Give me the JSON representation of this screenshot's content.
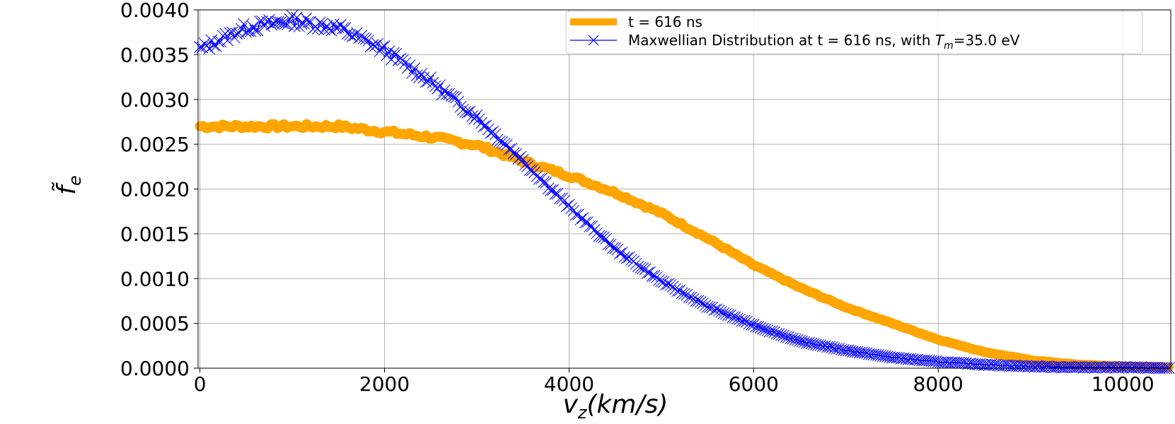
{
  "chart_data": {
    "type": "line",
    "title": "",
    "xlabel": "v_z(km/s)",
    "ylabel": "f̃_e",
    "xlim": [
      -20,
      10520
    ],
    "ylim": [
      0,
      0.004
    ],
    "grid": true,
    "legend_position": "top-right",
    "xticks": [
      {
        "value": 0,
        "label": "0"
      },
      {
        "value": 2000,
        "label": "2000"
      },
      {
        "value": 4000,
        "label": "4000"
      },
      {
        "value": 6000,
        "label": "6000"
      },
      {
        "value": 8000,
        "label": "8000"
      },
      {
        "value": 10000,
        "label": "10000"
      }
    ],
    "yticks": [
      {
        "value": 0.0,
        "label": "0.0000"
      },
      {
        "value": 0.0005,
        "label": "0.0005"
      },
      {
        "value": 0.001,
        "label": "0.0010"
      },
      {
        "value": 0.0015,
        "label": "0.0015"
      },
      {
        "value": 0.002,
        "label": "0.0020"
      },
      {
        "value": 0.0025,
        "label": "0.0025"
      },
      {
        "value": 0.003,
        "label": "0.0030"
      },
      {
        "value": 0.0035,
        "label": "0.0035"
      },
      {
        "value": 0.004,
        "label": "0.0040"
      }
    ],
    "series": [
      {
        "name": "t = 616 ns",
        "color": "#FFA500",
        "style": "thick-line",
        "x": [
          0,
          500,
          1000,
          1500,
          2000,
          2500,
          3000,
          3500,
          4000,
          4500,
          5000,
          5500,
          6000,
          6500,
          7000,
          7500,
          8000,
          8500,
          9000,
          9500,
          10000,
          10500
        ],
        "y": [
          0.0027,
          0.0027,
          0.0027,
          0.0027,
          0.00264,
          0.00258,
          0.00249,
          0.00231,
          0.00215,
          0.00196,
          0.00173,
          0.00145,
          0.00115,
          0.0009,
          0.00068,
          0.0005,
          0.00032,
          0.00018,
          9e-05,
          4e-05,
          2e-05,
          1e-05
        ]
      },
      {
        "name": "Maxwellian Distribution at t = 616 ns, with T_m=35.0 eV",
        "color": "#0000FF",
        "style": "line-x-markers",
        "x": [
          0,
          500,
          1000,
          1500,
          2000,
          2500,
          3000,
          3500,
          4000,
          4500,
          5000,
          5500,
          6000,
          6500,
          7000,
          7500,
          8000,
          8500,
          9000,
          9500,
          10000,
          10500
        ],
        "y": [
          0.00356,
          0.0038,
          0.00388,
          0.0038,
          0.00355,
          0.0032,
          0.0028,
          0.00232,
          0.0018,
          0.00133,
          0.00097,
          0.00069,
          0.00048,
          0.0003,
          0.0002,
          0.00012,
          7e-05,
          4e-05,
          2e-05,
          1e-05,
          1e-05,
          0.0
        ]
      }
    ],
    "legend": {
      "entry1": "t = 616 ns",
      "entry2_prefix": "Maxwellian Distribution at t = 616 ns, with ",
      "entry2_symbol": "T",
      "entry2_subscript": "m",
      "entry2_suffix": "=35.0 eV"
    },
    "axis_labels": {
      "x_var": "v",
      "x_sub": "z",
      "x_rest": "(km/s)",
      "y_var": "f̃",
      "y_sub": "e"
    }
  }
}
